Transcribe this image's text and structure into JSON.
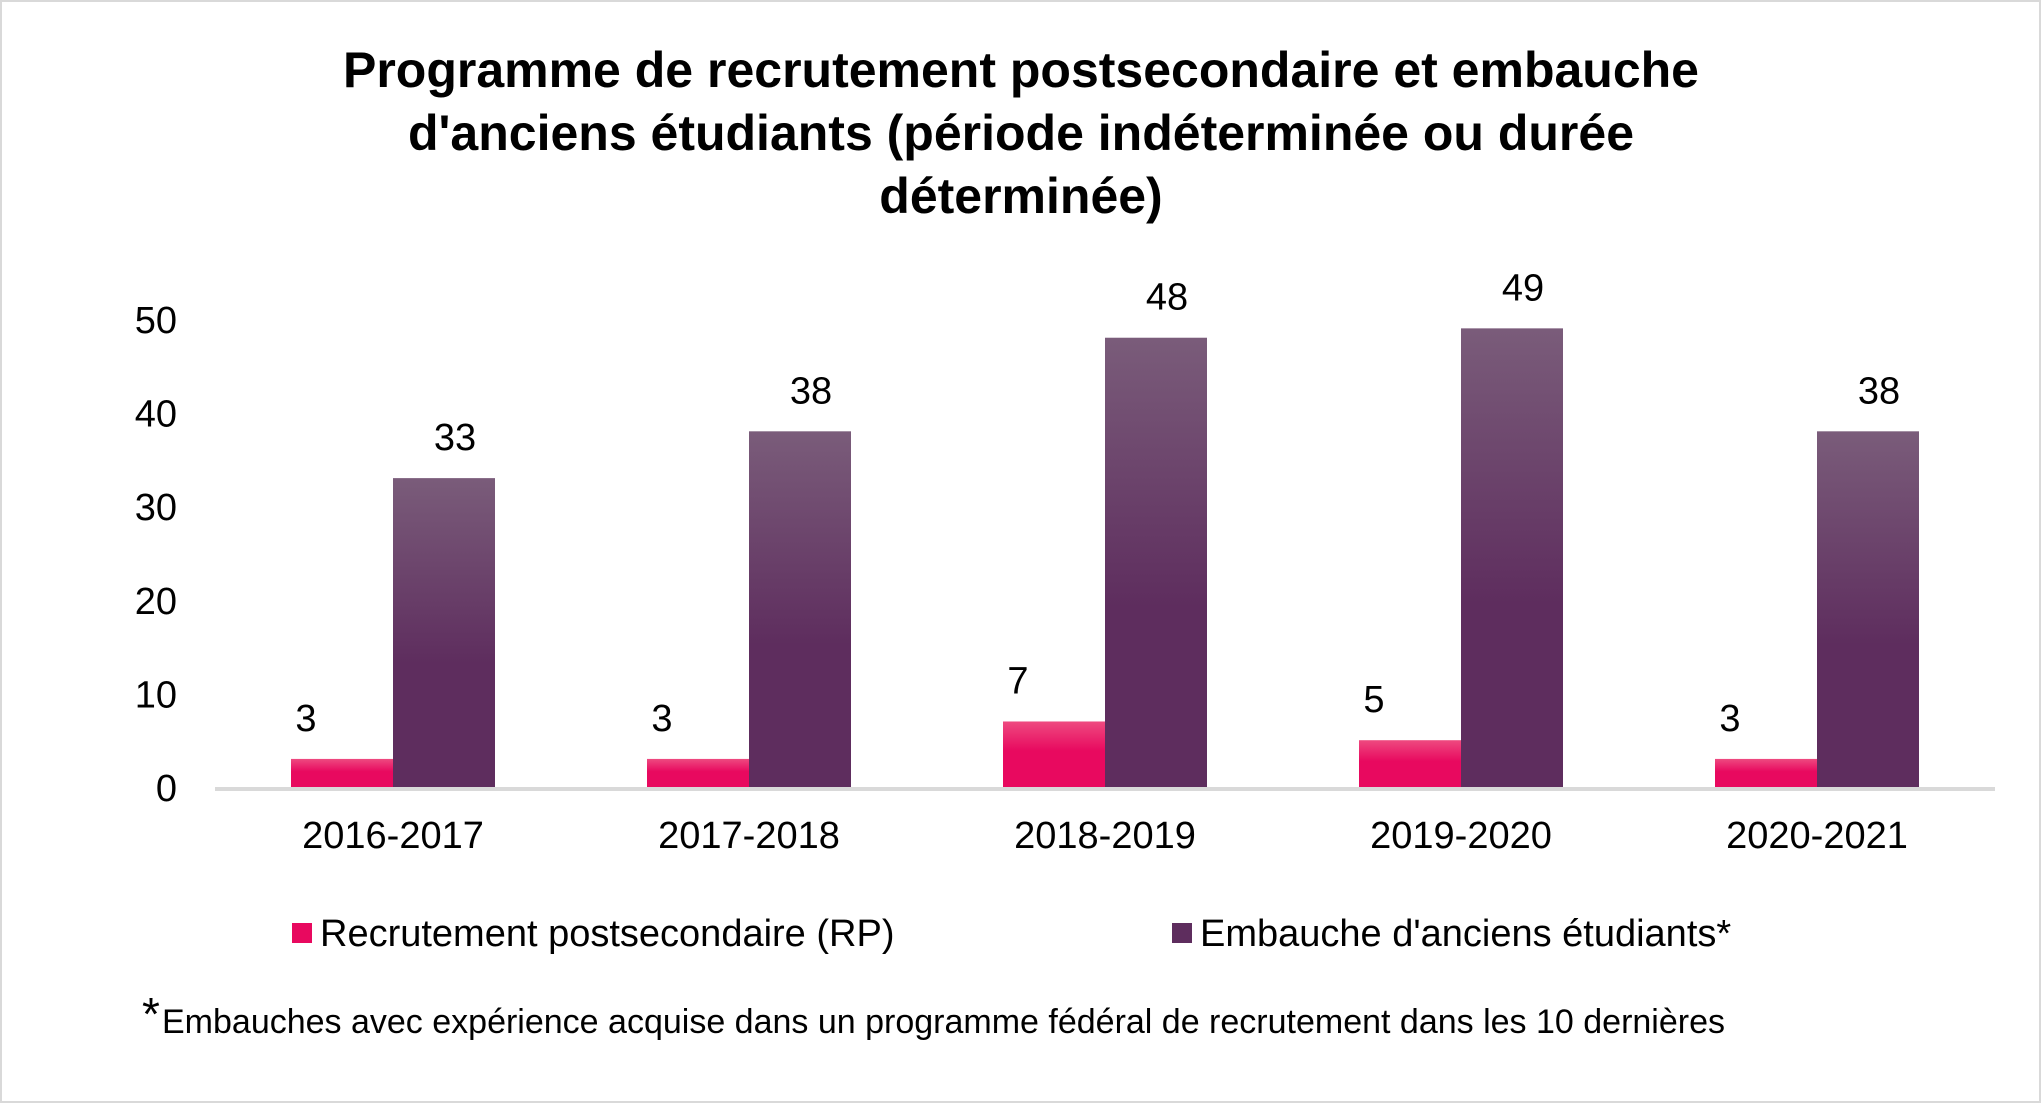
{
  "chart_data": {
    "type": "bar",
    "title_lines": [
      "Programme de recrutement postsecondaire et embauche",
      "d'anciens étudiants (période indéterminée ou durée",
      "déterminée)"
    ],
    "title": "Programme de recrutement postsecondaire et embauche d'anciens étudiants (période indéterminée ou durée déterminée)",
    "xlabel": "",
    "ylabel": "",
    "categories": [
      "2016-2017",
      "2017-2018",
      "2018-2019",
      "2019-2020",
      "2020-2021"
    ],
    "series": [
      {
        "name": "Recrutement postsecondaire (RP)",
        "values": [
          3,
          3,
          7,
          5,
          3
        ],
        "color": "#e8095f",
        "color_top": "#ee4a80"
      },
      {
        "name": "Embauche d'anciens étudiants*",
        "values": [
          33,
          38,
          48,
          49,
          38
        ],
        "color": "#5e2d5e",
        "color_top": "#7a5c7a"
      }
    ],
    "ylim": [
      0,
      50
    ],
    "yticks": [
      0,
      10,
      20,
      30,
      40,
      50
    ],
    "grid": false,
    "data_labels": true,
    "legend_position": "bottom",
    "footnote_marker": "*",
    "footnote": "Embauches avec expérience acquise dans un programme fédéral de recrutement dans les 10 dernières"
  }
}
